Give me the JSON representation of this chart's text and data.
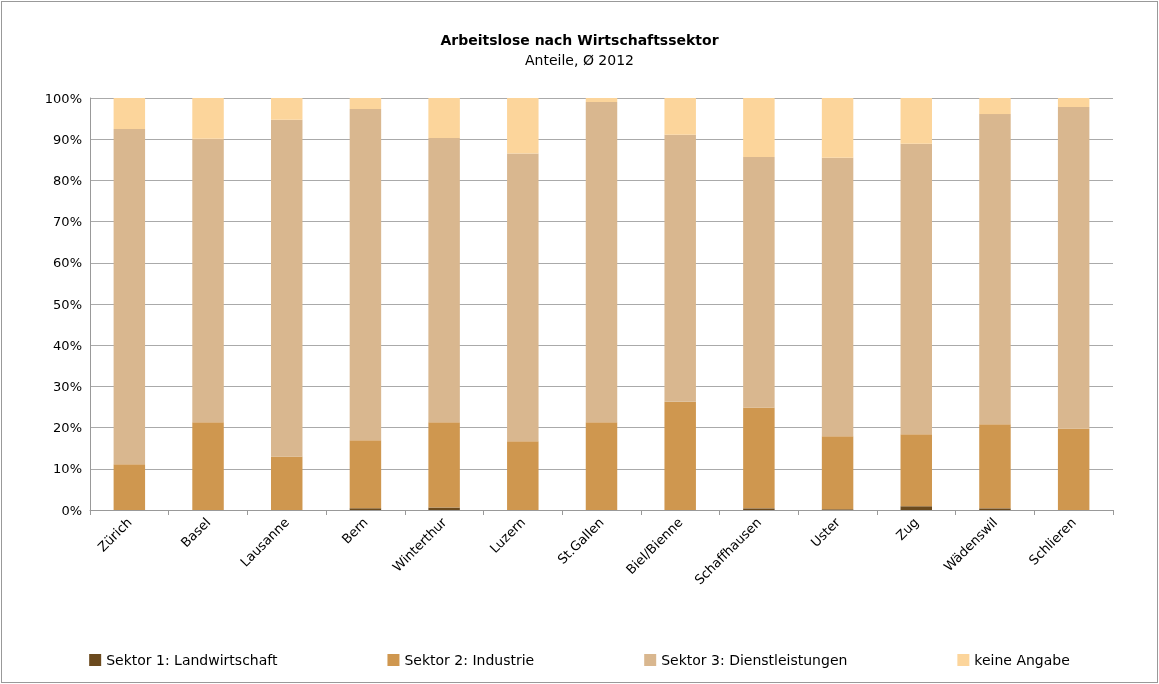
{
  "chart_data": {
    "type": "bar",
    "title": "Arbeitslose nach Wirtschaftssektor",
    "subtitle": "Anteile, Ø 2012",
    "categories": [
      "Zürich",
      "Basel",
      "Lausanne",
      "Bern",
      "Winterthur",
      "Luzern",
      "St.Gallen",
      "Biel/Bienne",
      "Schaffhausen",
      "Uster",
      "Zug",
      "Wädenswil",
      "Schlieren"
    ],
    "stacked": true,
    "series": [
      {
        "name": "Sektor 1: Landwirtschaft",
        "color": "#6b4a1e",
        "values": [
          0,
          0,
          0,
          0.4,
          0.6,
          0,
          0,
          0,
          0.4,
          0.2,
          0.9,
          0.4,
          0
        ]
      },
      {
        "name": "Sektor 2: Industrie",
        "color": "#cf974f",
        "values": [
          11.1,
          21.3,
          13.0,
          16.5,
          20.7,
          16.7,
          21.3,
          26.3,
          24.5,
          17.7,
          17.5,
          20.4,
          19.8
        ]
      },
      {
        "name": "Sektor 3: Dienstleistungen",
        "color": "#d9b78f",
        "values": [
          81.4,
          68.8,
          81.7,
          80.4,
          69.0,
          69.8,
          77.7,
          64.8,
          60.8,
          67.6,
          70.5,
          75.3,
          78.0
        ]
      },
      {
        "name": "keine Angabe",
        "color": "#fcd59b",
        "values": [
          7.5,
          9.9,
          5.3,
          2.7,
          9.7,
          13.5,
          1.0,
          8.9,
          14.3,
          14.5,
          11.1,
          3.9,
          2.2
        ]
      }
    ],
    "ylim": [
      0,
      100
    ],
    "yticks": [
      {
        "value": 0,
        "label": "0%"
      },
      {
        "value": 10,
        "label": "10%"
      },
      {
        "value": 20,
        "label": "20%"
      },
      {
        "value": 30,
        "label": "30%"
      },
      {
        "value": 40,
        "label": "40%"
      },
      {
        "value": 50,
        "label": "50%"
      },
      {
        "value": 60,
        "label": "60%"
      },
      {
        "value": 70,
        "label": "70%"
      },
      {
        "value": 80,
        "label": "80%"
      },
      {
        "value": 90,
        "label": "90%"
      },
      {
        "value": 100,
        "label": "100%"
      }
    ],
    "grid": "y",
    "legend": "bottom"
  }
}
